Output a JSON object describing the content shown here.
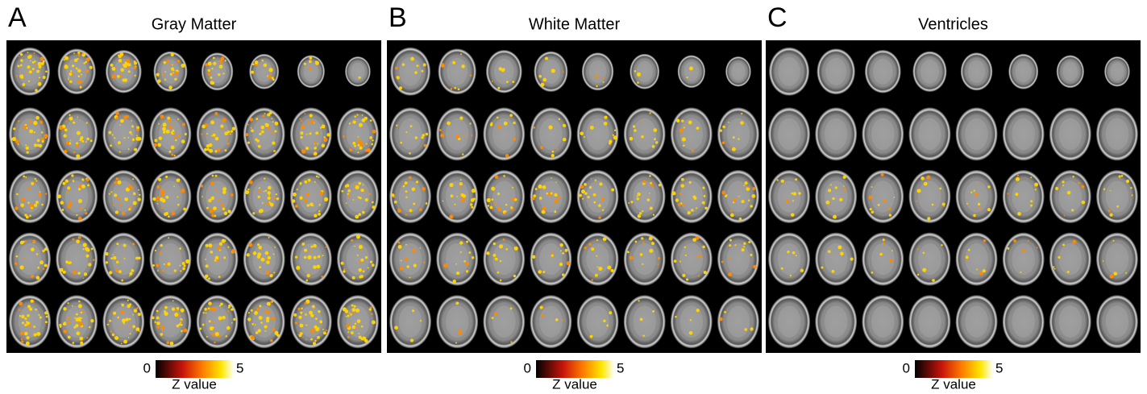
{
  "panels": [
    {
      "letter": "A",
      "title": "Gray Matter",
      "colorbar": {
        "min": 0,
        "max": 5,
        "label": "Z value"
      }
    },
    {
      "letter": "B",
      "title": "White Matter",
      "colorbar": {
        "min": 0,
        "max": 5,
        "label": "Z value"
      }
    },
    {
      "letter": "C",
      "title": "Ventricles",
      "colorbar": {
        "min": 0,
        "max": 5,
        "label": "Z value"
      }
    }
  ]
}
